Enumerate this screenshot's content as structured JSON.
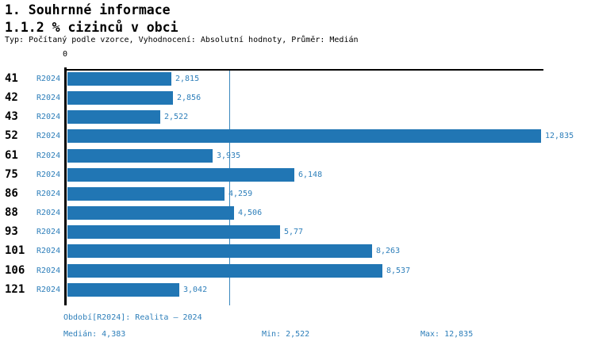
{
  "header": {
    "title_line1": "1. Souhrnné informace",
    "title_line2": "1.1.2 % cizinců v obci",
    "subtitle": "Typ: Počítaný podle vzorce, Vyhodnocení: Absolutní hodnoty, Průměr: Medián"
  },
  "chart_data": {
    "type": "bar",
    "orientation": "horizontal",
    "title": "1.1.2 % cizinců v obci",
    "origin_tick_label": "0",
    "categories": [
      "41",
      "42",
      "43",
      "52",
      "61",
      "75",
      "86",
      "88",
      "93",
      "101",
      "106",
      "121"
    ],
    "series_label": "R2024",
    "values": [
      2.815,
      2.856,
      2.522,
      12.835,
      3.935,
      6.148,
      4.259,
      4.506,
      5.77,
      8.263,
      8.537,
      3.042
    ],
    "value_labels": [
      "2,815",
      "2,856",
      "2,522",
      "12,835",
      "3,935",
      "6,148",
      "4,259",
      "4,506",
      "5,77",
      "8,263",
      "8,537",
      "3,042"
    ],
    "median_value": 4.383,
    "xlim": [
      0,
      12.9
    ],
    "grid": false,
    "legend_position": "none",
    "bar_color": "#2176b4",
    "median_line_color": "#3a87bd",
    "label_color": "#2e7fba"
  },
  "footer": {
    "period": "Období[R2024]: Realita – 2024",
    "median": "Medián: 4,383",
    "min": "Min: 2,522",
    "max": "Max: 12,835"
  }
}
